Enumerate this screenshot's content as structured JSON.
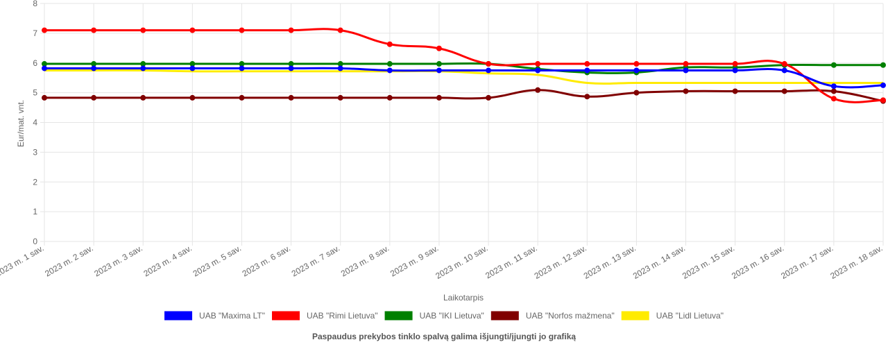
{
  "chart_data": {
    "type": "line",
    "title": "",
    "xlabel": "Laikotarpis",
    "ylabel": "Eur/mat. vnt.",
    "ylim": [
      0,
      8
    ],
    "yticks": [
      "0",
      "1",
      "2",
      "3",
      "4",
      "5",
      "6",
      "7",
      "8"
    ],
    "grid": true,
    "legend_position": "bottom",
    "categories": [
      "2023 m. 1 sav.",
      "2023 m. 2 sav.",
      "2023 m. 3 sav.",
      "2023 m. 4 sav.",
      "2023 m. 5 sav.",
      "2023 m. 6 sav.",
      "2023 m. 7 sav.",
      "2023 m. 8 sav.",
      "2023 m. 9 sav.",
      "2023 m. 10 sav.",
      "2023 m. 11 sav.",
      "2023 m. 12 sav.",
      "2023 m. 13 sav.",
      "2023 m. 14 sav.",
      "2023 m. 15 sav.",
      "2023 m. 16 sav.",
      "2023 m. 17 sav.",
      "2023 m. 18 sav."
    ],
    "series": [
      {
        "name": "UAB \"Maxima LT\"",
        "color": "#0000ff",
        "points": true,
        "values": [
          5.82,
          5.82,
          5.82,
          5.82,
          5.82,
          5.82,
          5.82,
          5.75,
          5.75,
          5.75,
          5.75,
          5.75,
          5.75,
          5.75,
          5.75,
          5.75,
          5.22,
          5.25
        ]
      },
      {
        "name": "UAB \"Rimi Lietuva\"",
        "color": "#ff0000",
        "points": true,
        "values": [
          7.1,
          7.1,
          7.1,
          7.1,
          7.1,
          7.1,
          7.1,
          6.63,
          6.49,
          5.97,
          5.97,
          5.97,
          5.97,
          5.97,
          5.97,
          5.97,
          4.8,
          4.75
        ]
      },
      {
        "name": "UAB \"IKI Lietuva\"",
        "color": "#008000",
        "points": true,
        "values": [
          5.97,
          5.97,
          5.97,
          5.97,
          5.97,
          5.97,
          5.97,
          5.97,
          5.97,
          5.97,
          5.8,
          5.68,
          5.68,
          5.85,
          5.85,
          5.93,
          5.93,
          5.93
        ]
      },
      {
        "name": "UAB \"Norfos mažmena\"",
        "color": "#800000",
        "points": true,
        "values": [
          4.83,
          4.83,
          4.83,
          4.83,
          4.83,
          4.83,
          4.83,
          4.83,
          4.83,
          4.83,
          5.09,
          4.87,
          5.0,
          5.05,
          5.05,
          5.05,
          5.05,
          4.72
        ]
      },
      {
        "name": "UAB \"Lidl Lietuva\"",
        "color": "#ffeb00",
        "points": false,
        "values": [
          5.75,
          5.75,
          5.75,
          5.72,
          5.72,
          5.72,
          5.72,
          5.72,
          5.72,
          5.65,
          5.6,
          5.33,
          5.33,
          5.33,
          5.33,
          5.33,
          5.33,
          5.33
        ]
      }
    ],
    "footnote": "Paspaudus prekybos tinklo spalvą galima išjungti/įjungti jo grafiką"
  }
}
